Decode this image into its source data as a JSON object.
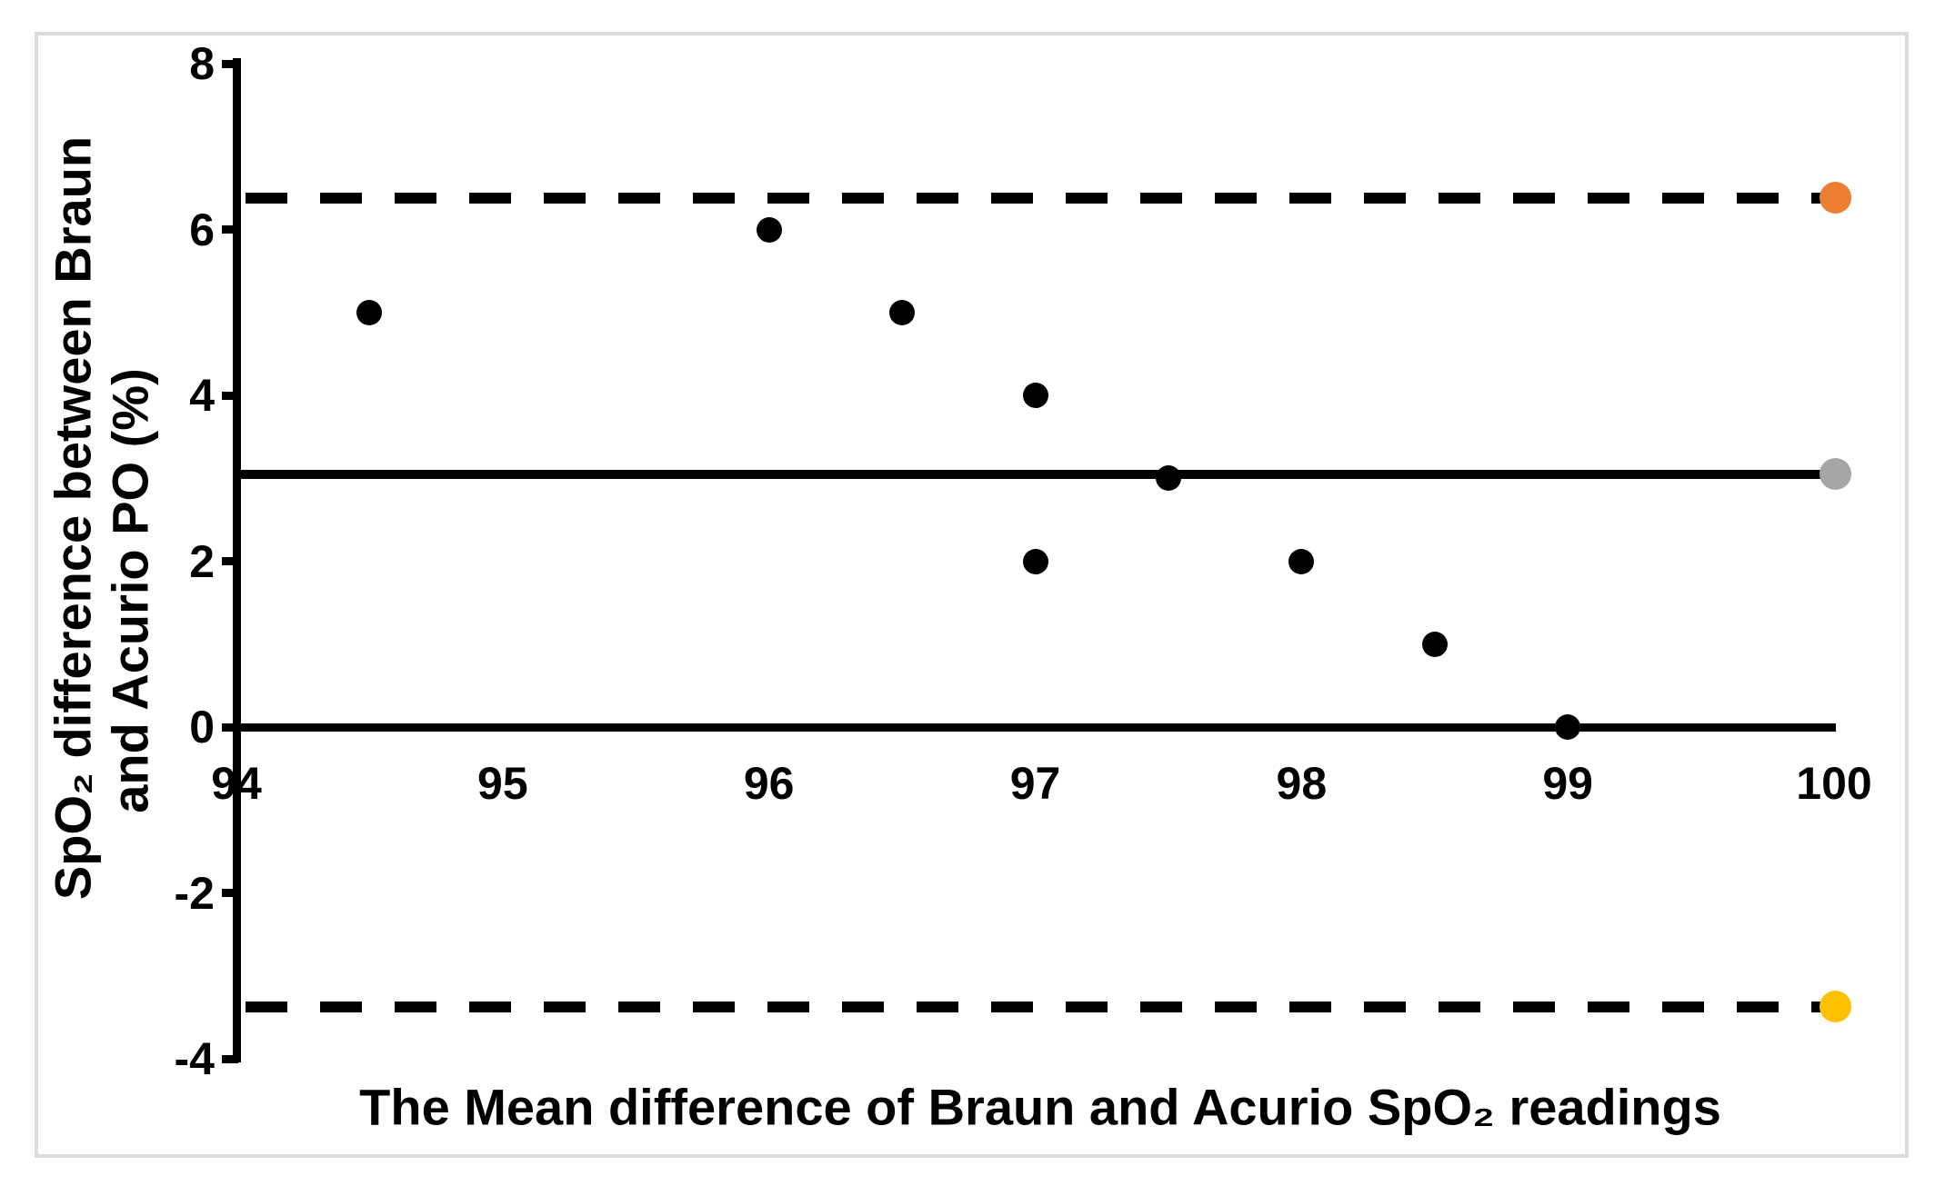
{
  "chart_data": {
    "type": "scatter",
    "title": "",
    "xlabel": "The Mean difference of Braun and Acurio SpO₂  readings",
    "ylabel_line1": "SpO₂  difference between Braun",
    "ylabel_line2": "and Acurio PO (%)",
    "xlim": [
      94,
      100
    ],
    "ylim": [
      -4,
      8
    ],
    "x_ticks": [
      94,
      95,
      96,
      97,
      98,
      99,
      100
    ],
    "y_ticks": [
      8,
      6,
      4,
      2,
      0,
      -2,
      -4
    ],
    "grid": false,
    "legend": "none",
    "points": [
      {
        "x": 94.5,
        "y": 5
      },
      {
        "x": 96,
        "y": 6
      },
      {
        "x": 96.5,
        "y": 5
      },
      {
        "x": 97,
        "y": 4
      },
      {
        "x": 97,
        "y": 2
      },
      {
        "x": 97.5,
        "y": 3
      },
      {
        "x": 98,
        "y": 2
      },
      {
        "x": 98.5,
        "y": 1
      },
      {
        "x": 99,
        "y": 0
      }
    ],
    "reference_lines": [
      {
        "id": "upper-limit-of-agreement",
        "value": 6.38,
        "style": "dashed",
        "endpoint_color": "#ED7D31"
      },
      {
        "id": "mean-difference",
        "value": 3.05,
        "style": "solid",
        "endpoint_color": "#A6A6A6"
      },
      {
        "id": "zero-baseline",
        "value": 0,
        "style": "axis",
        "endpoint_color": ""
      },
      {
        "id": "lower-limit-of-agreement",
        "value": -3.37,
        "style": "dashed",
        "endpoint_color": "#FFC000"
      }
    ],
    "colors": {
      "points": "#000000",
      "axes": "#000000",
      "frame_border": "#DCDCDC"
    }
  }
}
